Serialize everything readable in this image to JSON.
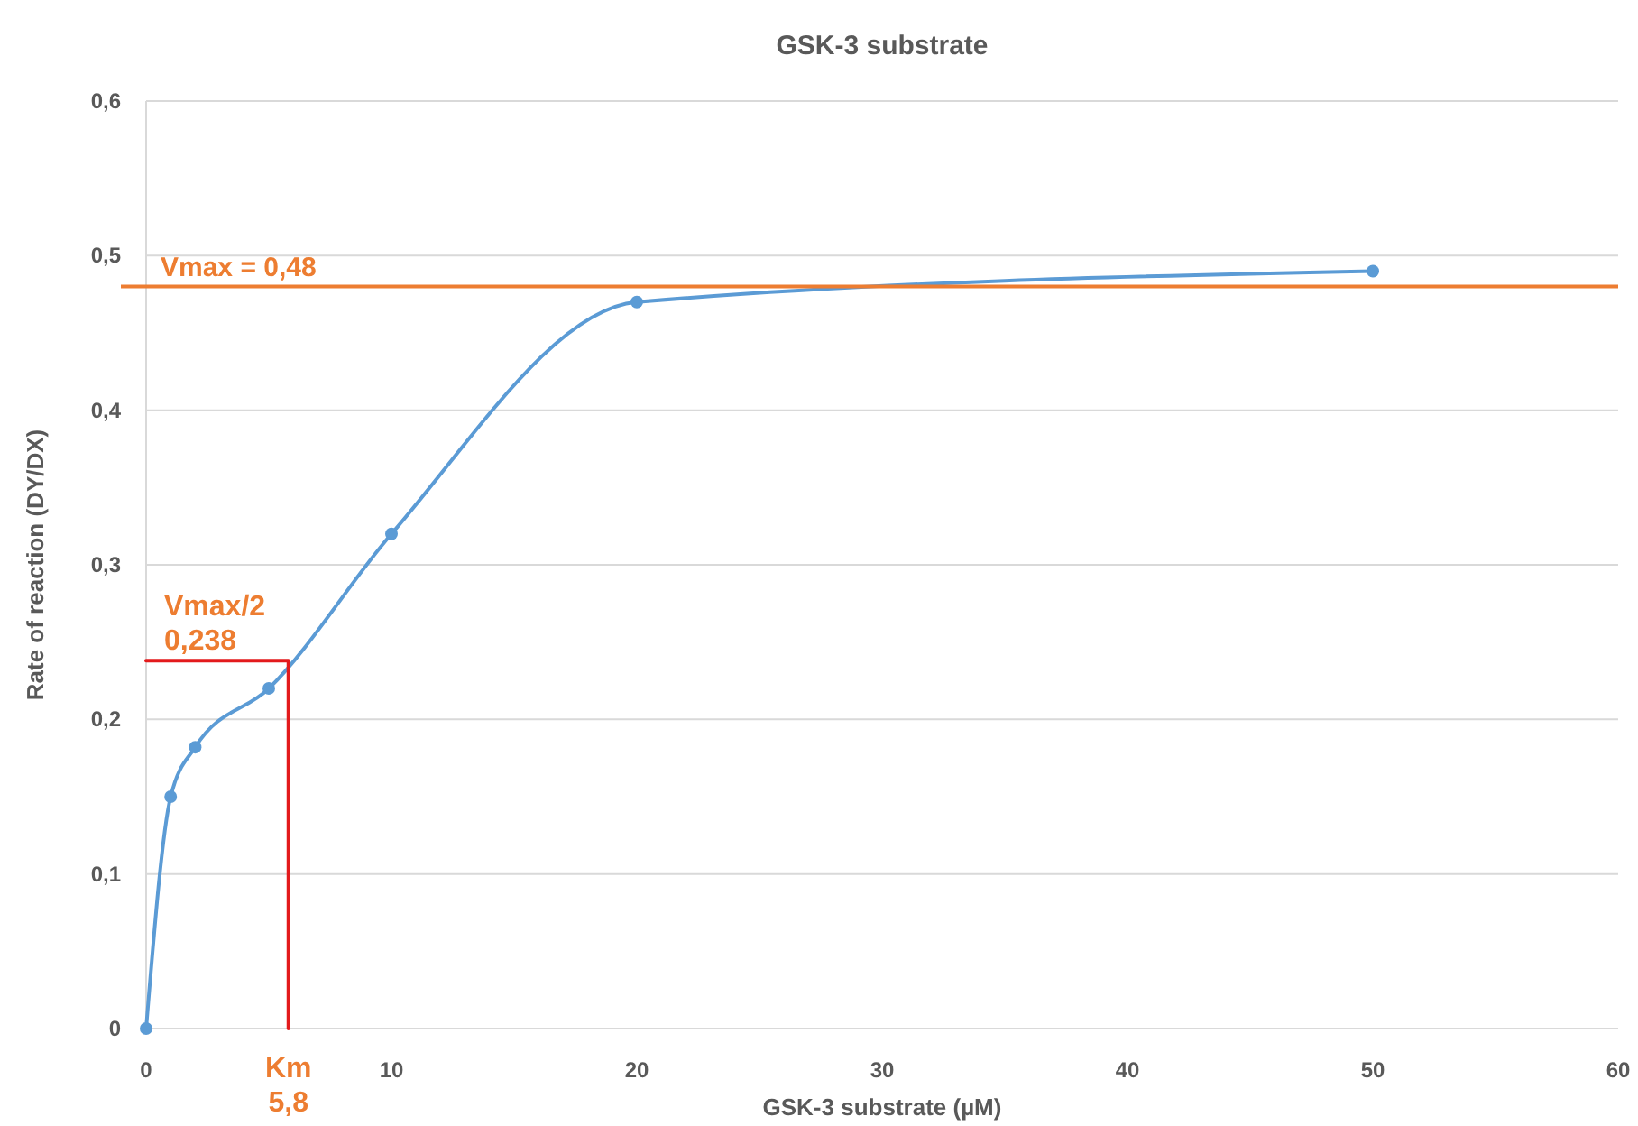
{
  "chart_data": {
    "type": "line",
    "title": "GSK-3 substrate",
    "xlabel": "GSK-3 substrate (µM)",
    "ylabel": "Rate of reaction (DY/DX)",
    "xlim": [
      0,
      60
    ],
    "xticks": [
      0,
      10,
      20,
      30,
      40,
      50,
      60
    ],
    "ylim": [
      0,
      0.6
    ],
    "yticks": [
      0,
      {
        "value": 0.1,
        "label": "0,1"
      },
      {
        "value": 0.2,
        "label": "0,2"
      },
      {
        "value": 0.3,
        "label": "0,3"
      },
      {
        "value": 0.4,
        "label": "0,4"
      },
      {
        "value": 0.5,
        "label": "0,5"
      },
      {
        "value": 0.6,
        "label": "0,6"
      }
    ],
    "grid": "y",
    "line_style": "solid",
    "series": [
      {
        "color": "#5b9bd5",
        "marker": "circle",
        "x": [
          0,
          1,
          2,
          5,
          10,
          20,
          50
        ],
        "values": [
          0,
          0.15,
          0.182,
          0.22,
          0.32,
          0.47,
          0.49
        ]
      },
      {
        "color": "#e31a1c",
        "marker": "none",
        "x": [
          0,
          5.8,
          5.8
        ],
        "values": [
          0.238,
          0.238,
          0
        ]
      }
    ],
    "ref_lines": [
      {
        "axis": "y",
        "value": 0.48,
        "label": "Vmax = 0,48",
        "color": "#ed7d31"
      }
    ],
    "annotations": [
      {
        "text": "Vmax/2\n0,238",
        "x": 0,
        "y": 0.238
      },
      {
        "text": "Km\n5,8",
        "x": 5.8,
        "y": 0
      }
    ]
  }
}
